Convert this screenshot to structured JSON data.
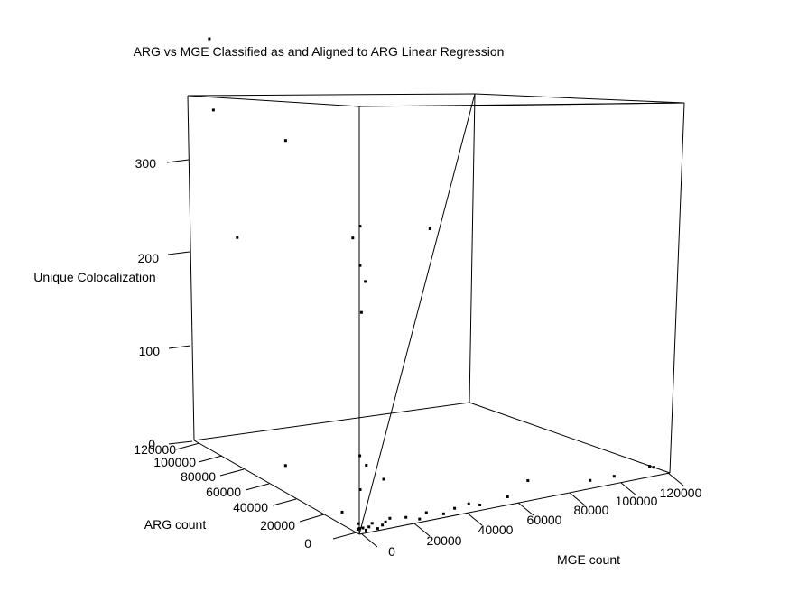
{
  "chart_data": {
    "type": "scatter",
    "subtype": "3d-scatter-with-regression-plane",
    "title": "ARG vs MGE Classified as and Aligned to ARG Linear Regression",
    "xlabel": "MGE count",
    "ylabel": "ARG count",
    "zlabel": "Unique Colocalization",
    "x_ticks": [
      "0",
      "20000",
      "40000",
      "60000",
      "80000",
      "100000",
      "120000"
    ],
    "y_ticks": [
      "0",
      "20000",
      "40000",
      "60000",
      "80000",
      "100000",
      "120000"
    ],
    "z_ticks": [
      "0",
      "100",
      "200",
      "300"
    ],
    "grid": false,
    "legend": "none",
    "point_color": "#000000",
    "points": [
      {
        "x": 0,
        "y": 0,
        "z": 5
      },
      {
        "x": 500,
        "y": 1500,
        "z": 8
      },
      {
        "x": 1000,
        "y": 3000,
        "z": 2
      },
      {
        "x": 2000,
        "y": 1000,
        "z": 4
      },
      {
        "x": 3000,
        "y": 500,
        "z": 2
      },
      {
        "x": 5000,
        "y": 2000,
        "z": 3
      },
      {
        "x": 6000,
        "y": 1500,
        "z": 6
      },
      {
        "x": 8000,
        "y": 1000,
        "z": 1
      },
      {
        "x": 10000,
        "y": 1200,
        "z": 3
      },
      {
        "x": 12000,
        "y": 2500,
        "z": 4
      },
      {
        "x": 14000,
        "y": 3000,
        "z": 6
      },
      {
        "x": 20000,
        "y": 2000,
        "z": 5
      },
      {
        "x": 25000,
        "y": 1000,
        "z": 2
      },
      {
        "x": 28000,
        "y": 1500,
        "z": 6
      },
      {
        "x": 35000,
        "y": 1500,
        "z": 2
      },
      {
        "x": 40000,
        "y": 2500,
        "z": 4
      },
      {
        "x": 46000,
        "y": 3000,
        "z": 5
      },
      {
        "x": 50000,
        "y": 2000,
        "z": 3
      },
      {
        "x": 62000,
        "y": 3500,
        "z": 4
      },
      {
        "x": 70000,
        "y": 3000,
        "z": 15
      },
      {
        "x": 95000,
        "y": 2500,
        "z": 5
      },
      {
        "x": 105000,
        "y": 3000,
        "z": 4
      },
      {
        "x": 121000,
        "y": 6000,
        "z": 4
      },
      {
        "x": 123000,
        "y": 6500,
        "z": 2
      },
      {
        "x": 2500,
        "y": 4000,
        "z": 35
      },
      {
        "x": 5000,
        "y": 4000,
        "z": 55
      },
      {
        "x": 5000,
        "y": 9000,
        "z": 60
      },
      {
        "x": 500,
        "y": 14000,
        "z": 10
      },
      {
        "x": 12000,
        "y": 4000,
        "z": 40
      },
      {
        "x": 2000,
        "y": 60000,
        "z": 20
      },
      {
        "x": 3000,
        "y": 4000,
        "z": 188
      },
      {
        "x": 4000,
        "y": 3000,
        "z": 215
      },
      {
        "x": 3000,
        "y": 5000,
        "z": 228
      },
      {
        "x": 3000,
        "y": 5000,
        "z": 262
      },
      {
        "x": 30000,
        "y": 2500,
        "z": 250
      },
      {
        "x": 8000,
        "y": 20000,
        "z": 240
      },
      {
        "x": 18000,
        "y": 90000,
        "z": 275
      },
      {
        "x": 1000,
        "y": 95000,
        "z": 195
      },
      {
        "x": 2000,
        "y": 115000,
        "z": 292
      },
      {
        "x": 3000,
        "y": 120000,
        "z": 350
      }
    ]
  }
}
